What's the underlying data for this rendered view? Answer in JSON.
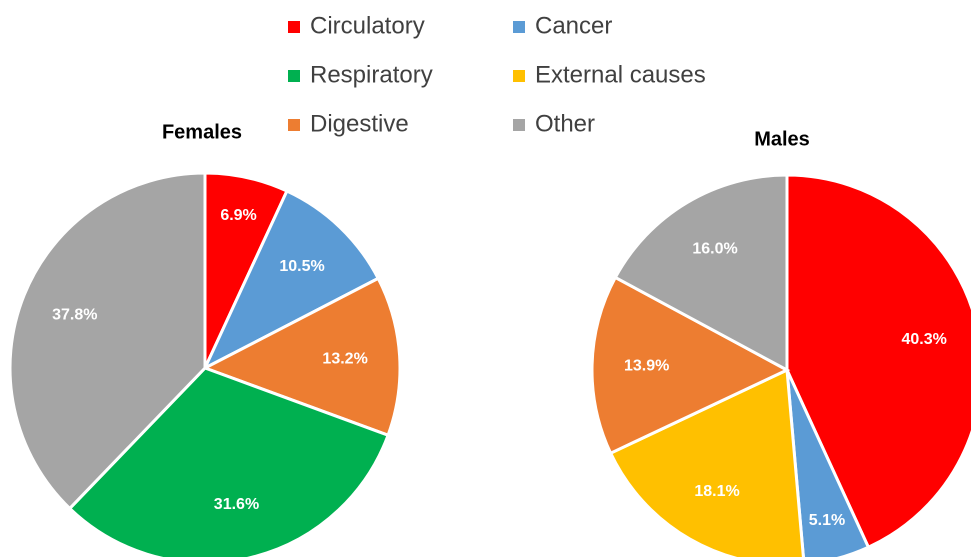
{
  "legend": {
    "entries": [
      "Circulatory",
      "Cancer",
      "Respiratory",
      "External causes",
      "Digestive",
      "Other"
    ],
    "colors": [
      "#ff0000",
      "#5b9bd5",
      "#00b050",
      "#ffc000",
      "#ed7d31",
      "#a5a5a5"
    ]
  },
  "chart_data": [
    {
      "type": "pie",
      "title": "Females",
      "categories": [
        "Circulatory",
        "Cancer",
        "Digestive",
        "Respiratory",
        "Other"
      ],
      "values": [
        6.9,
        10.5,
        13.2,
        31.6,
        37.8
      ],
      "value_labels": [
        "6.9%",
        "10.5%",
        "13.2%",
        "31.6%",
        "37.8%"
      ]
    },
    {
      "type": "pie",
      "title": "Males",
      "categories": [
        "Circulatory",
        "Cancer",
        "External causes",
        "Digestive",
        "Other"
      ],
      "values": [
        40.3,
        5.1,
        18.1,
        13.9,
        16
      ],
      "value_labels": [
        "40.3%",
        "5.1%",
        "18.1%",
        "13.9%",
        "16.0%"
      ]
    }
  ]
}
